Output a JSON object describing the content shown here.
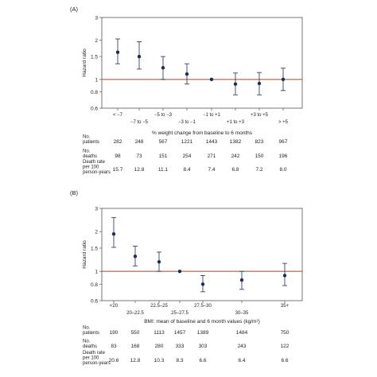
{
  "chart_data": [
    {
      "panel_label": "(A)",
      "type": "scatter",
      "ylabel": "Hazard ratio",
      "xlabel": "% weight change from baseline to 6 months",
      "y_scale": "log",
      "ylim": [
        0.6,
        3
      ],
      "y_ticks": [
        "3",
        "2",
        "1.5",
        "1",
        "0.8",
        "0.6"
      ],
      "reference_line": 1,
      "reference_color": "#c0392b",
      "marker_color": "#1f2d4d",
      "categories": [
        "< −7",
        "−7 to −5",
        "−5 to −3",
        "−3 to −1",
        "−1 to +1",
        "+1 to +3",
        "+3 to +5",
        "> +5"
      ],
      "hr": [
        1.62,
        1.5,
        1.23,
        1.1,
        1.0,
        0.92,
        0.93,
        1.0
      ],
      "ci_lower": [
        1.32,
        1.2,
        1.0,
        0.92,
        1.0,
        0.76,
        0.76,
        0.82
      ],
      "ci_upper": [
        2.05,
        1.95,
        1.5,
        1.32,
        1.0,
        1.12,
        1.13,
        1.22
      ],
      "table": {
        "rows": [
          {
            "label": [
              "No.",
              "patients"
            ],
            "values": [
              "282",
              "248",
              "567",
              "1221",
              "1443",
              "1382",
              "823",
              "967"
            ]
          },
          {
            "label": [
              "No.",
              "deaths"
            ],
            "values": [
              "98",
              "73",
              "151",
              "254",
              "271",
              "242",
              "150",
              "196"
            ]
          },
          {
            "label": [
              "Death rate",
              "per 100",
              "person-years"
            ],
            "values": [
              "15.7",
              "12.8",
              "11.1",
              "8.4",
              "7.4",
              "6.8",
              "7.2",
              "8.0"
            ]
          }
        ]
      }
    },
    {
      "panel_label": "(B)",
      "type": "scatter",
      "ylabel": "Hazard ratio",
      "xlabel": "BMI: mean of baseline and 6 month values (kg/m²)",
      "y_scale": "log",
      "ylim": [
        0.6,
        3
      ],
      "y_ticks": [
        "3",
        "2",
        "1.5",
        "1",
        "0.8",
        "0.6"
      ],
      "reference_line": 1,
      "reference_color": "#c0392b",
      "marker_color": "#1f2d4d",
      "categories": [
        "<20",
        "20–22.5",
        "22.5–25",
        "25–27.5",
        "27.5–30",
        "30–35",
        "35+"
      ],
      "hr": [
        1.92,
        1.3,
        1.18,
        1.0,
        0.8,
        0.86,
        0.93
      ],
      "ci_lower": [
        1.52,
        1.1,
        1.0,
        1.0,
        0.7,
        0.73,
        0.78
      ],
      "ci_upper": [
        2.55,
        1.55,
        1.4,
        1.0,
        0.93,
        1.0,
        1.15
      ],
      "table": {
        "rows": [
          {
            "label": [
              "No.",
              "patients"
            ],
            "values": [
              "190",
              "550",
              "1113",
              "1457",
              "1389",
              "1484",
              "750"
            ]
          },
          {
            "label": [
              "No.",
              "deaths"
            ],
            "values": [
              "83",
              "168",
              "280",
              "333",
              "303",
              "243",
              "122"
            ]
          },
          {
            "label": [
              "Death rate",
              "per 100",
              "person-years"
            ],
            "values": [
              "20.6",
              "12.8",
              "10.3",
              "8.3",
              "6.6",
              "6.4",
              "6.6"
            ]
          }
        ]
      }
    }
  ]
}
